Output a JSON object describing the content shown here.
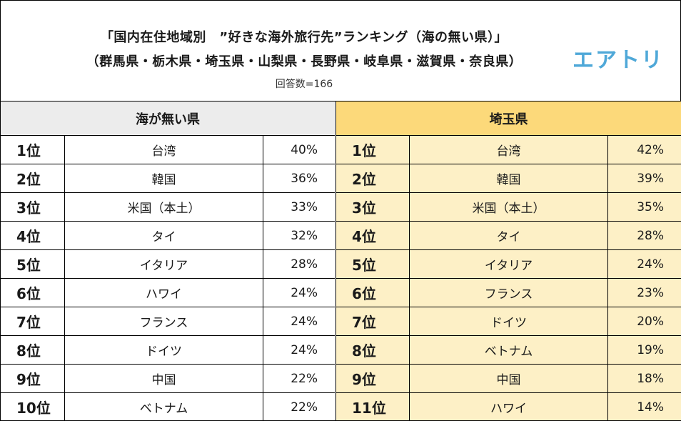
{
  "header": {
    "title_line1": "「国内在住地域別　”好きな海外旅行先”ランキング（海の無い県）」",
    "title_line2": "（群馬県・栃木県・埼玉県・山梨県・長野県・岐阜県・滋賀県・奈良県）",
    "respondents": "回答数=166",
    "logo": "エアトリ"
  },
  "colors": {
    "left_header_bg": "#ececec",
    "right_header_bg": "#fcd97a",
    "right_body_bg": "#fdf0c6",
    "logo": "#4fa8d8"
  },
  "left_table": {
    "heading": "海が無い県",
    "rows": [
      {
        "rank": "1位",
        "destination": "台湾",
        "percent": "40%"
      },
      {
        "rank": "2位",
        "destination": "韓国",
        "percent": "36%"
      },
      {
        "rank": "3位",
        "destination": "米国（本土）",
        "percent": "33%"
      },
      {
        "rank": "4位",
        "destination": "タイ",
        "percent": "32%"
      },
      {
        "rank": "5位",
        "destination": "イタリア",
        "percent": "28%"
      },
      {
        "rank": "6位",
        "destination": "ハワイ",
        "percent": "24%"
      },
      {
        "rank": "7位",
        "destination": "フランス",
        "percent": "24%"
      },
      {
        "rank": "8位",
        "destination": "ドイツ",
        "percent": "24%"
      },
      {
        "rank": "9位",
        "destination": "中国",
        "percent": "22%"
      },
      {
        "rank": "10位",
        "destination": "ベトナム",
        "percent": "22%"
      }
    ]
  },
  "right_table": {
    "heading": "埼玉県",
    "rows": [
      {
        "rank": "1位",
        "destination": "台湾",
        "percent": "42%"
      },
      {
        "rank": "2位",
        "destination": "韓国",
        "percent": "39%"
      },
      {
        "rank": "3位",
        "destination": "米国（本土）",
        "percent": "35%"
      },
      {
        "rank": "4位",
        "destination": "タイ",
        "percent": "28%"
      },
      {
        "rank": "5位",
        "destination": "イタリア",
        "percent": "24%"
      },
      {
        "rank": "6位",
        "destination": "フランス",
        "percent": "23%"
      },
      {
        "rank": "7位",
        "destination": "ドイツ",
        "percent": "20%"
      },
      {
        "rank": "8位",
        "destination": "ベトナム",
        "percent": "19%"
      },
      {
        "rank": "9位",
        "destination": "中国",
        "percent": "18%"
      },
      {
        "rank": "11位",
        "destination": "ハワイ",
        "percent": "14%"
      }
    ]
  }
}
